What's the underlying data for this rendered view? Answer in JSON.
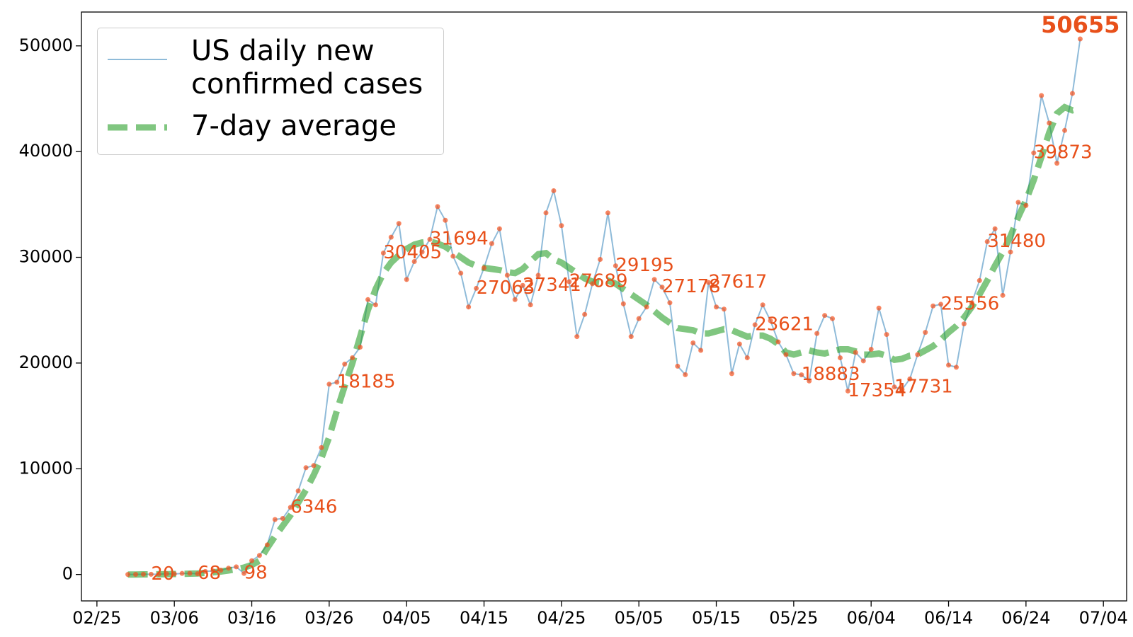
{
  "chart_data": {
    "type": "line",
    "x": [
      "02/29",
      "03/01",
      "03/02",
      "03/03",
      "03/04",
      "03/05",
      "03/06",
      "03/07",
      "03/08",
      "03/09",
      "03/10",
      "03/11",
      "03/12",
      "03/13",
      "03/14",
      "03/15",
      "03/16",
      "03/17",
      "03/18",
      "03/19",
      "03/20",
      "03/21",
      "03/22",
      "03/23",
      "03/24",
      "03/25",
      "03/26",
      "03/27",
      "03/28",
      "03/29",
      "03/30",
      "03/31",
      "04/01",
      "04/02",
      "04/03",
      "04/04",
      "04/05",
      "04/06",
      "04/07",
      "04/08",
      "04/09",
      "04/10",
      "04/11",
      "04/12",
      "04/13",
      "04/14",
      "04/15",
      "04/16",
      "04/17",
      "04/18",
      "04/19",
      "04/20",
      "04/21",
      "04/22",
      "04/23",
      "04/24",
      "04/25",
      "04/26",
      "04/27",
      "04/28",
      "04/29",
      "04/30",
      "05/01",
      "05/02",
      "05/03",
      "05/04",
      "05/05",
      "05/06",
      "05/07",
      "05/08",
      "05/09",
      "05/10",
      "05/11",
      "05/12",
      "05/13",
      "05/14",
      "05/15",
      "05/16",
      "05/17",
      "05/18",
      "05/19",
      "05/20",
      "05/21",
      "05/22",
      "05/23",
      "05/24",
      "05/25",
      "05/26",
      "05/27",
      "05/28",
      "05/29",
      "05/30",
      "05/31",
      "06/01",
      "06/02",
      "06/03",
      "06/04",
      "06/05",
      "06/06",
      "06/07",
      "06/08",
      "06/09",
      "06/10",
      "06/11",
      "06/12",
      "06/13",
      "06/14",
      "06/15",
      "06/16",
      "06/17",
      "06/18",
      "06/19",
      "06/20",
      "06/21",
      "06/22",
      "06/23",
      "06/24",
      "06/25",
      "06/26",
      "06/27",
      "06/28",
      "06/29",
      "06/30",
      "07/01"
    ],
    "series": [
      {
        "name": "US daily new confirmed cases",
        "color": "#1f77b4",
        "marker_color": "#f4511e",
        "label_color": "#e8501a",
        "values": [
          4,
          7,
          23,
          20,
          31,
          70,
          50,
          100,
          110,
          68,
          290,
          340,
          400,
          600,
          720,
          98,
          1300,
          1800,
          2800,
          5200,
          5300,
          6346,
          7900,
          10100,
          10300,
          12000,
          18000,
          18185,
          19900,
          20500,
          21500,
          26000,
          25500,
          30405,
          31900,
          33200,
          27900,
          29600,
          30500,
          31694,
          34800,
          33500,
          30100,
          28500,
          25300,
          27063,
          29000,
          31300,
          32700,
          28300,
          26000,
          27341,
          25500,
          28300,
          34200,
          36300,
          33000,
          27689,
          22500,
          24600,
          27500,
          29800,
          34200,
          29195,
          25600,
          22500,
          24200,
          25300,
          27900,
          27178,
          25700,
          19700,
          18900,
          21900,
          21200,
          27617,
          25300,
          25100,
          19000,
          21800,
          20500,
          23621,
          25500,
          24000,
          22000,
          20800,
          19000,
          18883,
          18300,
          22800,
          24500,
          24200,
          20500,
          17354,
          21000,
          20200,
          21300,
          25200,
          22700,
          17731,
          17500,
          18500,
          20800,
          22900,
          25400,
          25556,
          19800,
          19600,
          23700,
          25700,
          27800,
          31480,
          32700,
          26400,
          30500,
          35200,
          34900,
          39873,
          45300,
          42700,
          38900,
          42000,
          45500,
          50655
        ]
      },
      {
        "name": "7-day average",
        "color": "#2ca02c",
        "dashed": true,
        "values": [
          0,
          0,
          10,
          15,
          20,
          30,
          45,
          60,
          80,
          100,
          150,
          200,
          280,
          380,
          500,
          650,
          900,
          1300,
          2500,
          3600,
          4600,
          5600,
          6800,
          8000,
          9400,
          11000,
          13000,
          15500,
          17800,
          20000,
          22500,
          25000,
          27000,
          28500,
          29500,
          30200,
          30800,
          31200,
          31400,
          31500,
          31300,
          31000,
          30500,
          30000,
          29500,
          29200,
          29000,
          28900,
          28800,
          28600,
          28500,
          28900,
          29600,
          30300,
          30400,
          29800,
          29500,
          29000,
          28500,
          28000,
          27700,
          27600,
          27800,
          27500,
          27000,
          26500,
          26000,
          25500,
          24900,
          24300,
          23800,
          23300,
          23200,
          23100,
          22800,
          22800,
          23000,
          23200,
          23100,
          22800,
          22500,
          22600,
          22600,
          22300,
          21800,
          21000,
          20800,
          21000,
          21200,
          21000,
          20900,
          21100,
          21300,
          21300,
          21100,
          20800,
          20800,
          20900,
          20700,
          20300,
          20400,
          20700,
          20800,
          21200,
          21600,
          22200,
          22900,
          23500,
          24300,
          25300,
          26500,
          27800,
          29200,
          30500,
          32000,
          33800,
          35400,
          37300,
          39500,
          41800,
          43600,
          44200,
          43900,
          44100
        ]
      }
    ],
    "xlim": [
      "02/23",
      "07/07"
    ],
    "xticks": [
      "02/25",
      "03/06",
      "03/16",
      "03/26",
      "04/05",
      "04/15",
      "04/25",
      "05/05",
      "05/15",
      "05/25",
      "06/04",
      "06/14",
      "06/24",
      "07/04"
    ],
    "ylim": [
      -2500,
      53200
    ],
    "yticks": [
      0,
      10000,
      20000,
      30000,
      40000,
      50000
    ],
    "legend": "upper left"
  }
}
